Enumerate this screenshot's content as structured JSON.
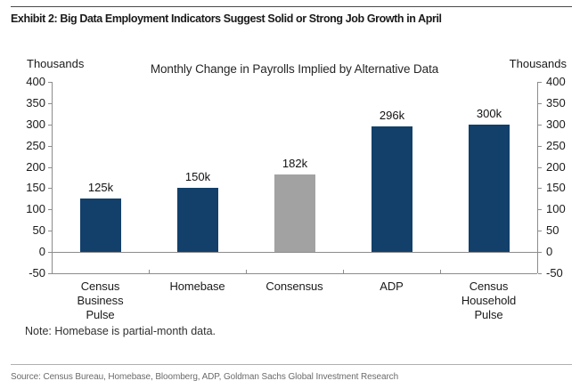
{
  "page": {
    "exhibit_title": "Exhibit 2: Big Data Employment Indicators Suggest Solid or Strong Job Growth in April",
    "note": "Note: Homebase is partial-month data.",
    "source": "Source: Census Bureau, Homebase, Bloomberg, ADP, Goldman Sachs Global Investment Research"
  },
  "chart_data": {
    "type": "bar",
    "title": "Monthly Change in Payrolls Implied by Alternative Data",
    "xlabel": "",
    "ylabel_left": "Thousands",
    "ylabel_right": "Thousands",
    "categories": [
      "Census\nBusiness\nPulse",
      "Homebase",
      "Consensus",
      "ADP",
      "Census\nHousehold\nPulse"
    ],
    "values": [
      125,
      150,
      182,
      296,
      300
    ],
    "data_labels": [
      "125k",
      "150k",
      "182k",
      "296k",
      "300k"
    ],
    "bar_colors": [
      "#12406A",
      "#12406A",
      "#A2A2A2",
      "#12406A",
      "#12406A"
    ],
    "ylim": [
      -50,
      400
    ],
    "yticks": [
      400,
      350,
      300,
      250,
      200,
      150,
      100,
      50,
      0,
      -50
    ],
    "grid": false,
    "legend": "none",
    "axis_color": "#8c8c8c",
    "accent_navy": "#12406A",
    "accent_gray": "#A2A2A2"
  }
}
